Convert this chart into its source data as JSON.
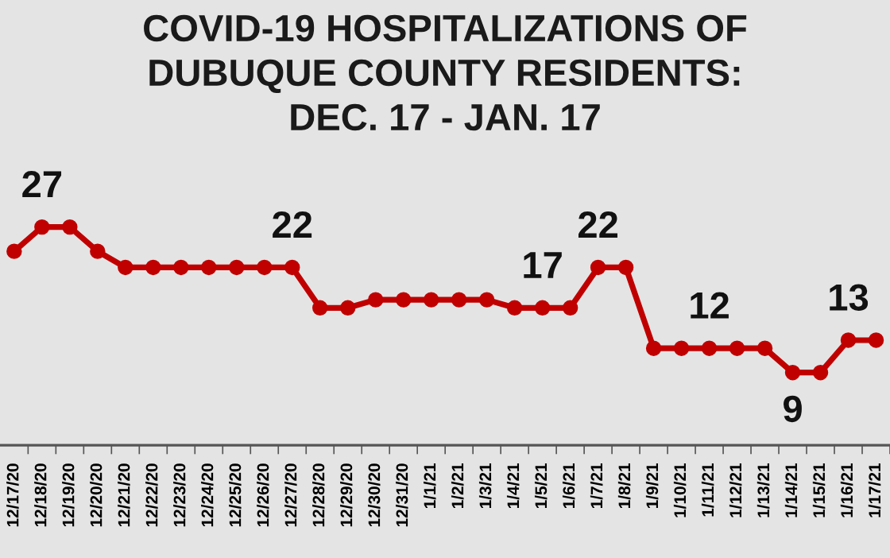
{
  "chart_data": {
    "type": "line",
    "title": "COVID-19 HOSPITALIZATIONS OF\nDUBUQUE COUNTY RESIDENTS:\nDEC. 17 - JAN. 17",
    "categories": [
      "12/17/20",
      "12/18/20",
      "12/19/20",
      "12/20/20",
      "12/21/20",
      "12/22/20",
      "12/23/20",
      "12/24/20",
      "12/25/20",
      "12/26/20",
      "12/27/20",
      "12/28/20",
      "12/29/20",
      "12/30/20",
      "12/31/20",
      "1/1/21",
      "1/2/21",
      "1/3/21",
      "1/4/21",
      "1/5/21",
      "1/6/21",
      "1/7/21",
      "1/8/21",
      "1/9/21",
      "1/10/21",
      "1/11/21",
      "1/12/21",
      "1/13/21",
      "1/14/21",
      "1/15/21",
      "1/16/21",
      "1/17/21"
    ],
    "series": [
      {
        "color": "#c00000",
        "values": [
          24,
          27,
          27,
          24,
          22,
          22,
          22,
          22,
          22,
          22,
          22,
          17,
          17,
          18,
          18,
          18,
          18,
          18,
          17,
          17,
          17,
          22,
          22,
          12,
          12,
          12,
          12,
          12,
          9,
          9,
          13,
          13
        ],
        "value_labels": [
          null,
          "27",
          null,
          null,
          null,
          null,
          null,
          null,
          null,
          null,
          "22",
          null,
          null,
          null,
          null,
          null,
          null,
          null,
          null,
          "17",
          null,
          "22",
          null,
          null,
          null,
          "12",
          null,
          null,
          "9",
          null,
          "13",
          null
        ]
      }
    ],
    "marker": "circle",
    "line_style": "solid",
    "grid": false,
    "legend": false,
    "tick_labels": "x"
  }
}
